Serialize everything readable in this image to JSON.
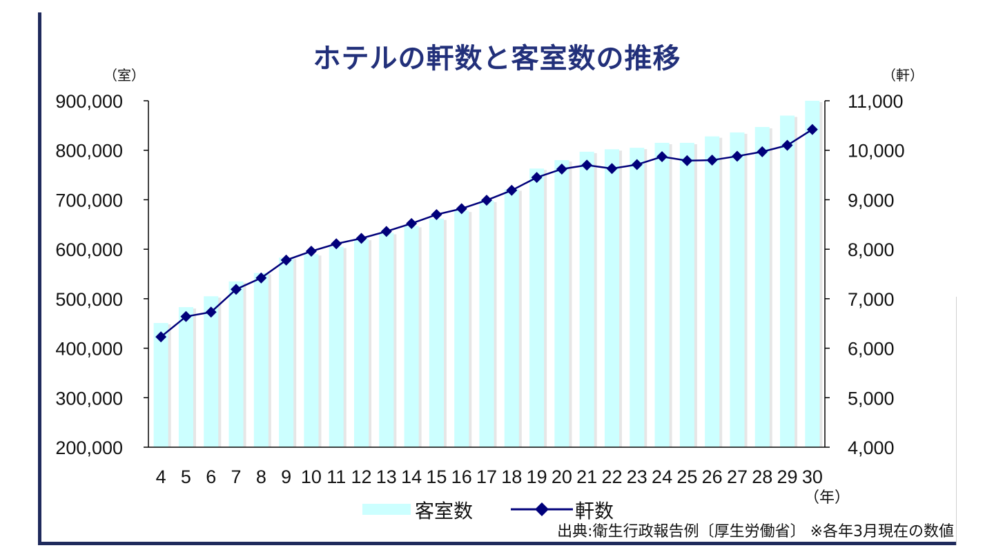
{
  "chart_data": {
    "type": "bar",
    "title": "ホテルの軒数と客室数の推移",
    "left_axis_unit": "（室）",
    "right_axis_unit": "（軒）",
    "x_unit": "（年）",
    "categories": [
      "4",
      "5",
      "6",
      "7",
      "8",
      "9",
      "10",
      "11",
      "12",
      "13",
      "14",
      "15",
      "16",
      "17",
      "18",
      "19",
      "20",
      "21",
      "22",
      "23",
      "24",
      "25",
      "26",
      "27",
      "28",
      "29",
      "30"
    ],
    "left_ylim": [
      200000,
      900000
    ],
    "left_ticks": [
      "900,000",
      "800,000",
      "700,000",
      "600,000",
      "500,000",
      "400,000",
      "300,000",
      "200,000"
    ],
    "right_ylim": [
      4000,
      11000
    ],
    "right_ticks": [
      "11,000",
      "10,000",
      "9,000",
      "8,000",
      "7,000",
      "6,000",
      "5,000",
      "4,000"
    ],
    "grid": false,
    "legend_position": "bottom",
    "series": [
      {
        "name": "客室数",
        "type": "bar",
        "axis": "left",
        "color": "#ccffff",
        "values": [
          451000,
          483000,
          505000,
          535000,
          552000,
          583000,
          590000,
          605000,
          621000,
          633000,
          647000,
          662000,
          678000,
          698000,
          721000,
          763000,
          780000,
          797000,
          802000,
          805000,
          815000,
          815000,
          828000,
          836000,
          847000,
          870000,
          900000
        ]
      },
      {
        "name": "軒数",
        "type": "line",
        "axis": "right",
        "color": "#00007a",
        "marker": "diamond",
        "values": [
          6230,
          6640,
          6730,
          7190,
          7420,
          7780,
          7960,
          8110,
          8220,
          8360,
          8520,
          8700,
          8820,
          8990,
          9190,
          9450,
          9620,
          9700,
          9630,
          9710,
          9870,
          9790,
          9800,
          9880,
          9970,
          10100,
          10420
        ]
      }
    ]
  },
  "source_note": "出典:衛生行政報告例〔厚生労働省〕 ※各年3月現在の数値"
}
